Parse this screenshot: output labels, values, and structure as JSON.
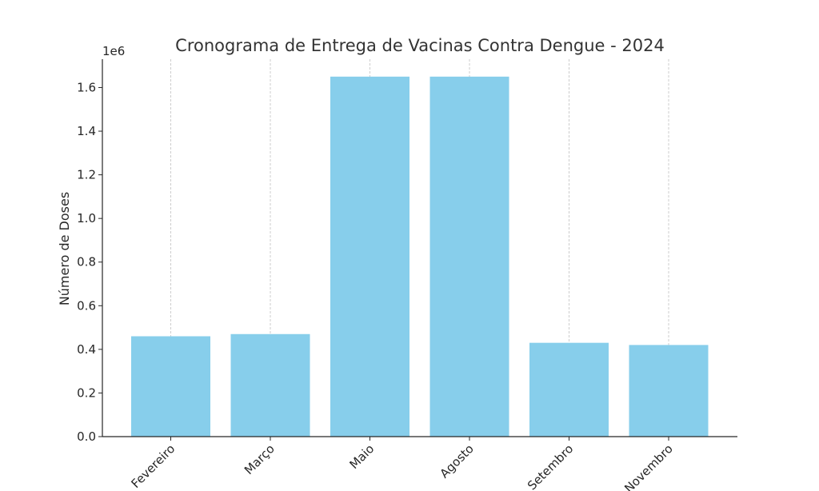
{
  "chart_data": {
    "type": "bar",
    "title": "Cronograma de Entrega de Vacinas Contra Dengue - 2024",
    "xlabel": "",
    "ylabel": "Número de Doses",
    "y_offset_label": "1e6",
    "categories": [
      "Fevereiro",
      "Março",
      "Maio",
      "Agosto",
      "Setembro",
      "Novembro"
    ],
    "values": [
      460000,
      470000,
      1650000,
      1650000,
      430000,
      420000
    ],
    "ylim": [
      0,
      1730000
    ],
    "yticks": [
      0,
      200000,
      400000,
      600000,
      800000,
      1000000,
      1200000,
      1400000,
      1600000
    ],
    "ytick_labels": [
      "0.0",
      "0.2",
      "0.4",
      "0.6",
      "0.8",
      "1.0",
      "1.2",
      "1.4",
      "1.6"
    ],
    "grid": "vertical dashed",
    "legend": "none",
    "bar_color": "#87CEEB",
    "grid_color": "#c8c8c8",
    "axis_color": "#262626"
  }
}
